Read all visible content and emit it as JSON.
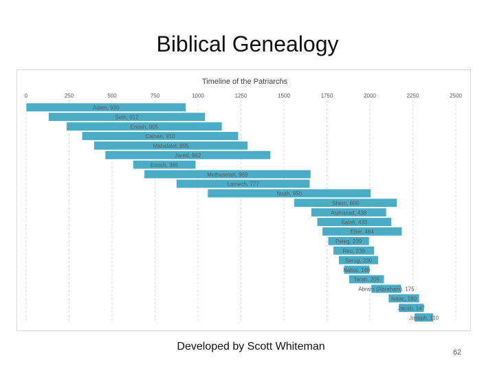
{
  "slide": {
    "title": "Biblical Genealogy",
    "footer": "Developed by Scott Whiteman",
    "page_number": "62"
  },
  "colors": {
    "bar_fill": "#4bacc6",
    "bar_stroke": "#ffffff",
    "grid": "#d9d9d9",
    "text": "#595959"
  },
  "chart_data": {
    "type": "bar",
    "orientation": "horizontal-floating",
    "title": "Timeline of the Patriarchs",
    "xlabel": "",
    "ylabel": "",
    "xlim": [
      0,
      2500
    ],
    "xticks": [
      0,
      250,
      500,
      750,
      1000,
      1250,
      1500,
      1750,
      2000,
      2250,
      2500
    ],
    "grid": true,
    "legend": "none",
    "series": [
      {
        "name": "Adam",
        "start": 0,
        "duration": 930,
        "label": "Adam, 930"
      },
      {
        "name": "Seth",
        "start": 130,
        "duration": 912,
        "label": "Seth, 912"
      },
      {
        "name": "Enosh",
        "start": 235,
        "duration": 905,
        "label": "Enosh, 905"
      },
      {
        "name": "Cainan",
        "start": 325,
        "duration": 910,
        "label": "Cainan, 910"
      },
      {
        "name": "Mahalalel",
        "start": 395,
        "duration": 895,
        "label": "Mahalalel, 895"
      },
      {
        "name": "Jared",
        "start": 460,
        "duration": 962,
        "label": "Jared, 962"
      },
      {
        "name": "Enoch",
        "start": 622,
        "duration": 365,
        "label": "Enoch, 365"
      },
      {
        "name": "Methuselah",
        "start": 687,
        "duration": 969,
        "label": "Methuselah, 969"
      },
      {
        "name": "Lamech",
        "start": 874,
        "duration": 777,
        "label": "Lamech, 777"
      },
      {
        "name": "Noah",
        "start": 1056,
        "duration": 950,
        "label": "Noah, 950"
      },
      {
        "name": "Shem",
        "start": 1558,
        "duration": 600,
        "label": "Shem, 600"
      },
      {
        "name": "Arphaxad",
        "start": 1658,
        "duration": 438,
        "label": "Arphaxad, 438"
      },
      {
        "name": "Salah",
        "start": 1693,
        "duration": 433,
        "label": "Salah, 433"
      },
      {
        "name": "Eber",
        "start": 1723,
        "duration": 464,
        "label": "Eber, 464"
      },
      {
        "name": "Peleg",
        "start": 1757,
        "duration": 239,
        "label": "Peleg, 239"
      },
      {
        "name": "Reu",
        "start": 1787,
        "duration": 239,
        "label": "Reu, 239"
      },
      {
        "name": "Serug",
        "start": 1819,
        "duration": 230,
        "label": "Serug, 230"
      },
      {
        "name": "Nahor",
        "start": 1849,
        "duration": 148,
        "label": "Nahor, 148"
      },
      {
        "name": "Terah",
        "start": 1878,
        "duration": 205,
        "label": "Terah, 205"
      },
      {
        "name": "Abram (Abraham)",
        "start": 2008,
        "duration": 175,
        "label": "Abram (Abraham), 175"
      },
      {
        "name": "Isaac",
        "start": 2108,
        "duration": 180,
        "label": "Isaac, 180"
      },
      {
        "name": "Jacob",
        "start": 2168,
        "duration": 147,
        "label": "Jacob, 147"
      },
      {
        "name": "Joseph",
        "start": 2259,
        "duration": 110,
        "label": "Joseph, 110"
      }
    ]
  }
}
